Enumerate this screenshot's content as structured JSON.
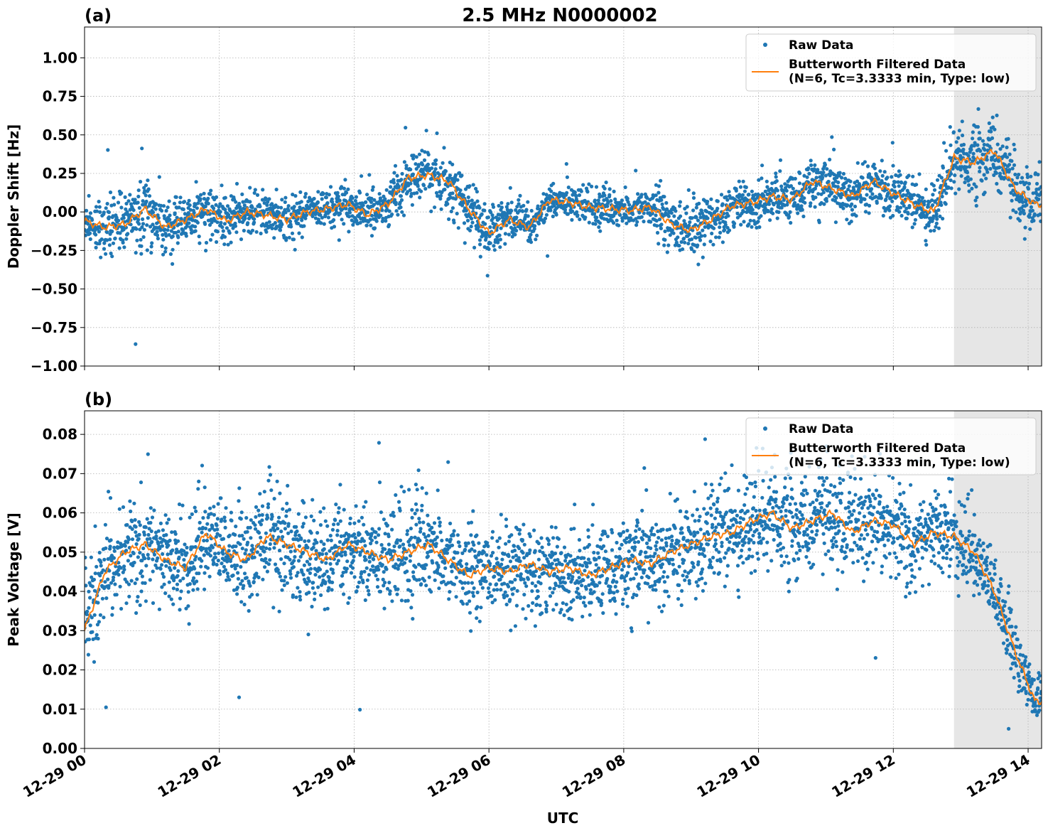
{
  "figure": {
    "title": "2.5 MHz N0000002",
    "xlabel": "UTC",
    "shaded_region": {
      "start_hour": 12.9,
      "end_hour": 14.2,
      "color": "#e6e6e6"
    },
    "colors": {
      "raw": "#1f77b4",
      "filtered": "#ff7f0e",
      "grid": "#b0b0b0"
    }
  },
  "chart_data": [
    {
      "type": "scatter",
      "panel_label": "(a)",
      "ylabel": "Doppler Shift [Hz]",
      "xlim_hours": [
        0,
        14.2
      ],
      "ylim": [
        -1.0,
        1.2
      ],
      "x_ticks": [
        "12-29 00",
        "12-29 02",
        "12-29 04",
        "12-29 06",
        "12-29 08",
        "12-29 10",
        "12-29 12",
        "12-29 14"
      ],
      "x_tick_hours": [
        0,
        2,
        4,
        6,
        8,
        10,
        12,
        14
      ],
      "y_ticks": [
        -1.0,
        -0.75,
        -0.5,
        -0.25,
        0.0,
        0.25,
        0.5,
        0.75,
        1.0
      ],
      "y_tick_labels": [
        "−1.00",
        "−0.75",
        "−0.50",
        "−0.25",
        "0.00",
        "0.25",
        "0.50",
        "0.75",
        "1.00"
      ],
      "grid": true,
      "legend": {
        "placement": "upper right",
        "entries": [
          "Raw Data",
          "Butterworth Filtered Data",
          "(N=6, Tc=3.3333 min, Type: low)"
        ]
      },
      "series": [
        {
          "name": "Butterworth Filtered Data",
          "kind": "line",
          "x_hours": [
            0,
            0.3,
            0.6,
            0.9,
            1.2,
            1.5,
            1.8,
            2.1,
            2.4,
            2.7,
            3.0,
            3.3,
            3.6,
            3.9,
            4.2,
            4.5,
            4.8,
            5.1,
            5.4,
            5.7,
            6.0,
            6.3,
            6.6,
            6.9,
            7.2,
            7.5,
            7.8,
            8.1,
            8.4,
            8.7,
            9.0,
            9.3,
            9.6,
            9.9,
            10.2,
            10.5,
            10.8,
            11.1,
            11.4,
            11.7,
            12.0,
            12.3,
            12.6,
            12.9,
            13.2,
            13.5,
            13.8,
            14.1
          ],
          "y": [
            -0.06,
            -0.1,
            -0.08,
            0.02,
            -0.1,
            -0.05,
            0.02,
            -0.06,
            0.0,
            -0.02,
            -0.05,
            0.0,
            0.02,
            0.05,
            -0.02,
            0.05,
            0.22,
            0.24,
            0.2,
            0.02,
            -0.14,
            -0.05,
            -0.1,
            0.08,
            0.06,
            0.03,
            0.02,
            0.01,
            0.03,
            -0.08,
            -0.12,
            -0.05,
            0.04,
            0.06,
            0.1,
            0.08,
            0.2,
            0.15,
            0.1,
            0.2,
            0.12,
            0.05,
            0.0,
            0.35,
            0.32,
            0.4,
            0.15,
            0.05
          ]
        },
        {
          "name": "Raw Data",
          "kind": "points",
          "spread": [
            0.12,
            0.22,
            0.18,
            0.25,
            0.18,
            0.15,
            0.16,
            0.2,
            0.14,
            0.14,
            0.15,
            0.13,
            0.14,
            0.16,
            0.14,
            0.16,
            0.18,
            0.2,
            0.18,
            0.22,
            0.2,
            0.16,
            0.14,
            0.12,
            0.12,
            0.12,
            0.12,
            0.13,
            0.14,
            0.2,
            0.22,
            0.15,
            0.16,
            0.16,
            0.16,
            0.17,
            0.18,
            0.18,
            0.18,
            0.18,
            0.18,
            0.16,
            0.2,
            0.22,
            0.24,
            0.26,
            0.22,
            0.2
          ]
        }
      ]
    },
    {
      "type": "scatter",
      "panel_label": "(b)",
      "ylabel": "Peak Voltage [V]",
      "xlim_hours": [
        0,
        14.2
      ],
      "ylim": [
        0.0,
        0.086
      ],
      "x_ticks": [
        "12-29 00",
        "12-29 02",
        "12-29 04",
        "12-29 06",
        "12-29 08",
        "12-29 10",
        "12-29 12",
        "12-29 14"
      ],
      "x_tick_hours": [
        0,
        2,
        4,
        6,
        8,
        10,
        12,
        14
      ],
      "y_ticks": [
        0.0,
        0.01,
        0.02,
        0.03,
        0.04,
        0.05,
        0.06,
        0.07,
        0.08
      ],
      "y_tick_labels": [
        "0.00",
        "0.01",
        "0.02",
        "0.03",
        "0.04",
        "0.05",
        "0.06",
        "0.07",
        "0.08"
      ],
      "grid": true,
      "legend": {
        "placement": "upper right",
        "entries": [
          "Raw Data",
          "Butterworth Filtered Data",
          "(N=6, Tc=3.3333 min, Type: low)"
        ]
      },
      "series": [
        {
          "name": "Butterworth Filtered Data",
          "kind": "line",
          "x_hours": [
            0,
            0.3,
            0.6,
            0.9,
            1.2,
            1.5,
            1.8,
            2.1,
            2.4,
            2.7,
            3.0,
            3.3,
            3.6,
            3.9,
            4.2,
            4.5,
            4.8,
            5.1,
            5.4,
            5.7,
            6.0,
            6.3,
            6.6,
            6.9,
            7.2,
            7.5,
            7.8,
            8.1,
            8.4,
            8.7,
            9.0,
            9.3,
            9.6,
            9.9,
            10.2,
            10.5,
            10.8,
            11.1,
            11.4,
            11.7,
            12.0,
            12.3,
            12.6,
            12.9,
            13.2,
            13.5,
            13.8,
            14.1
          ],
          "y": [
            0.03,
            0.045,
            0.05,
            0.052,
            0.048,
            0.046,
            0.055,
            0.05,
            0.048,
            0.054,
            0.052,
            0.05,
            0.048,
            0.052,
            0.05,
            0.048,
            0.05,
            0.052,
            0.048,
            0.044,
            0.046,
            0.045,
            0.047,
            0.045,
            0.046,
            0.044,
            0.046,
            0.048,
            0.047,
            0.05,
            0.052,
            0.054,
            0.055,
            0.058,
            0.06,
            0.056,
            0.058,
            0.06,
            0.055,
            0.058,
            0.057,
            0.052,
            0.055,
            0.054,
            0.05,
            0.04,
            0.025,
            0.012
          ]
        },
        {
          "name": "Raw Data",
          "kind": "points",
          "spread": [
            0.016,
            0.014,
            0.014,
            0.015,
            0.014,
            0.014,
            0.015,
            0.014,
            0.014,
            0.015,
            0.014,
            0.014,
            0.014,
            0.015,
            0.014,
            0.014,
            0.014,
            0.014,
            0.013,
            0.012,
            0.012,
            0.012,
            0.012,
            0.012,
            0.012,
            0.012,
            0.012,
            0.013,
            0.013,
            0.014,
            0.014,
            0.014,
            0.014,
            0.014,
            0.014,
            0.014,
            0.014,
            0.014,
            0.014,
            0.014,
            0.014,
            0.013,
            0.013,
            0.013,
            0.012,
            0.011,
            0.009,
            0.006
          ]
        }
      ]
    }
  ]
}
